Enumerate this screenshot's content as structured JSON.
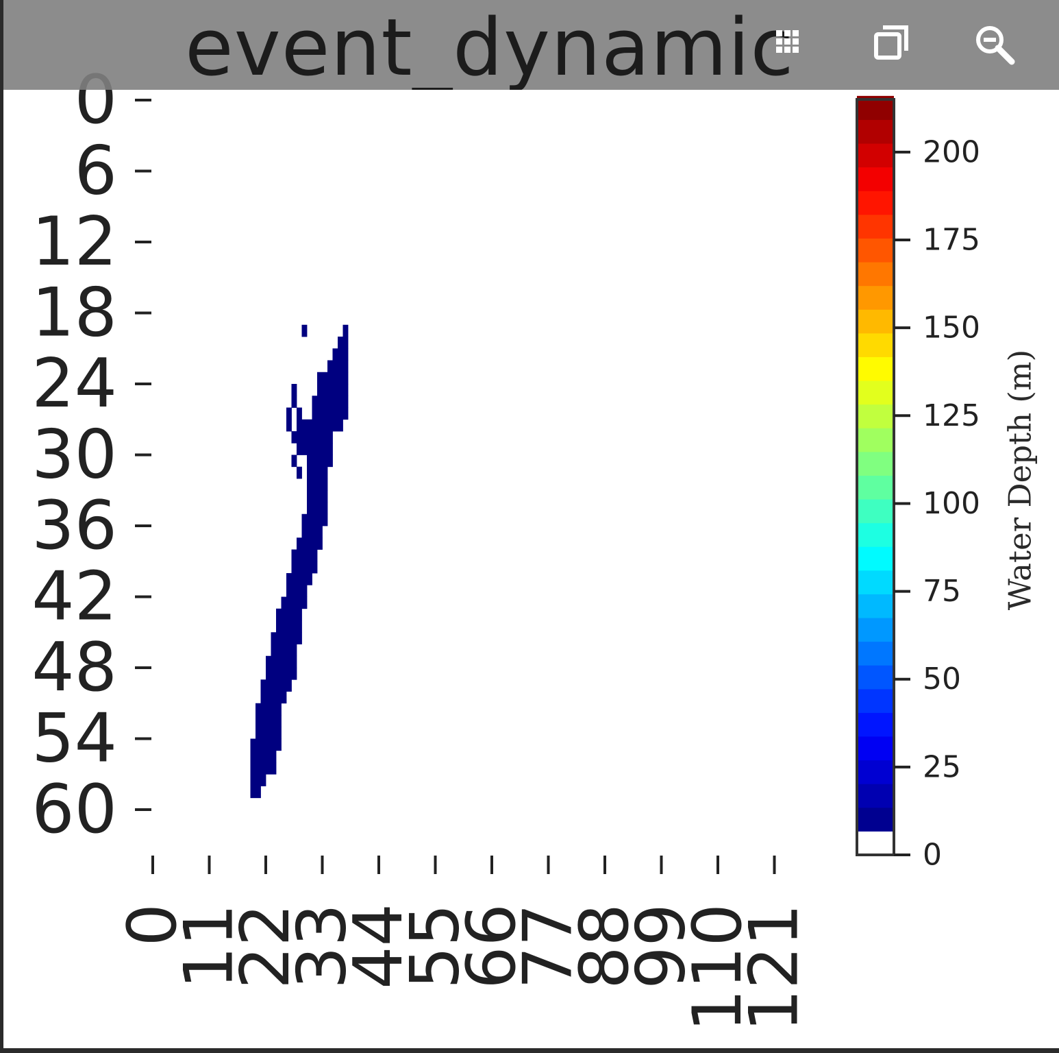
{
  "toolbar": {
    "title": "event_dynamic",
    "icons": [
      "grid-icon",
      "copy-icon",
      "zoom-icon"
    ]
  },
  "chart_data": {
    "type": "heatmap",
    "title": "event_dynamic",
    "xlabel": "",
    "ylabel": "",
    "x_tick_labels": [
      "0",
      "11",
      "22",
      "33",
      "44",
      "55",
      "66",
      "77",
      "88",
      "99",
      "110",
      "121"
    ],
    "x_ticks": [
      0,
      11,
      22,
      33,
      44,
      55,
      66,
      77,
      88,
      99,
      110,
      121
    ],
    "y_tick_labels": [
      "0",
      "6",
      "12",
      "18",
      "24",
      "30",
      "36",
      "42",
      "48",
      "54",
      "60"
    ],
    "y_ticks": [
      0,
      6,
      12,
      18,
      24,
      30,
      36,
      42,
      48,
      54,
      60
    ],
    "colorbar": {
      "label": "Water Depth (m)",
      "ticks": [
        0,
        25,
        50,
        75,
        100,
        125,
        150,
        175,
        200
      ],
      "range": [
        0,
        215
      ],
      "colormap": "jet",
      "zero_color": "#ffffff",
      "low_color": "#000080"
    },
    "occupied_value_m": 5,
    "occupied_cells": [
      [
        19,
        29,
        29
      ],
      [
        19,
        37,
        37
      ],
      [
        20,
        36,
        37
      ],
      [
        21,
        35,
        37
      ],
      [
        22,
        34,
        37
      ],
      [
        23,
        32,
        37
      ],
      [
        24,
        32,
        37
      ],
      [
        24,
        27,
        27
      ],
      [
        25,
        31,
        37
      ],
      [
        25,
        27,
        27
      ],
      [
        26,
        31,
        37
      ],
      [
        26,
        26,
        26
      ],
      [
        26,
        28,
        28
      ],
      [
        27,
        28,
        36
      ],
      [
        27,
        26,
        26
      ],
      [
        28,
        27,
        34
      ],
      [
        29,
        28,
        34
      ],
      [
        30,
        30,
        34
      ],
      [
        30,
        27,
        27
      ],
      [
        31,
        30,
        33
      ],
      [
        31,
        28,
        28
      ],
      [
        32,
        30,
        33
      ],
      [
        33,
        30,
        33
      ],
      [
        34,
        30,
        33
      ],
      [
        35,
        29,
        33
      ],
      [
        36,
        29,
        32
      ],
      [
        37,
        28,
        32
      ],
      [
        38,
        27,
        31
      ],
      [
        39,
        27,
        31
      ],
      [
        40,
        26,
        30
      ],
      [
        41,
        26,
        29
      ],
      [
        42,
        25,
        29
      ],
      [
        43,
        24,
        28
      ],
      [
        44,
        24,
        28
      ],
      [
        45,
        23,
        28
      ],
      [
        46,
        23,
        27
      ],
      [
        47,
        22,
        27
      ],
      [
        48,
        22,
        27
      ],
      [
        49,
        21,
        26
      ],
      [
        50,
        21,
        25
      ],
      [
        51,
        20,
        24
      ],
      [
        52,
        20,
        24
      ],
      [
        53,
        20,
        24
      ],
      [
        54,
        19,
        24
      ],
      [
        55,
        19,
        23
      ],
      [
        56,
        19,
        23
      ],
      [
        57,
        19,
        21
      ],
      [
        58,
        19,
        20
      ]
    ]
  }
}
